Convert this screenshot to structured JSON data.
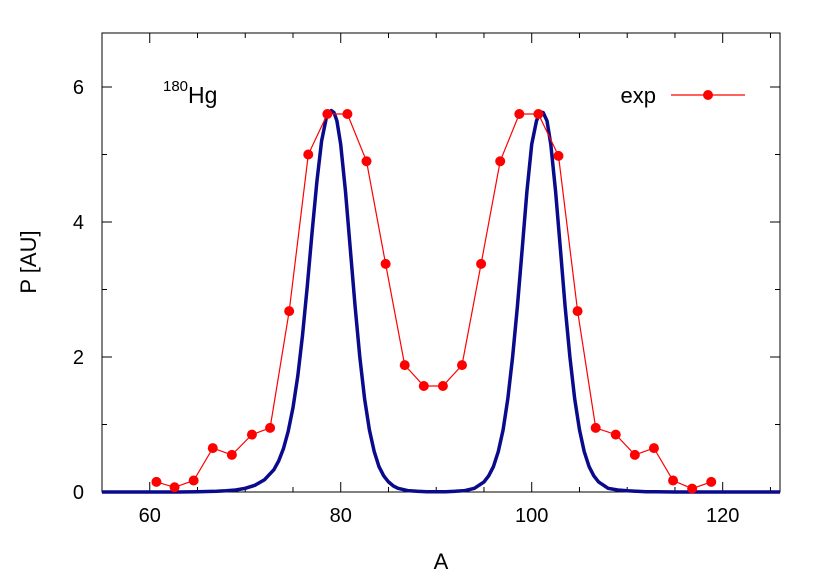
{
  "chart_data": {
    "type": "line",
    "title": "",
    "annotation": {
      "mass_number": "180",
      "element": "Hg"
    },
    "xlabel": "A",
    "ylabel": "P [AU]",
    "xlim": [
      55,
      126
    ],
    "ylim": [
      0,
      6.8
    ],
    "x_ticks": [
      60,
      80,
      100,
      120
    ],
    "y_ticks": [
      0,
      2,
      4,
      6
    ],
    "grid": false,
    "legend_position": "top-right",
    "colors": {
      "exp": "#ff0000",
      "theory": "#0a0a8c",
      "axis": "#000000"
    },
    "series": [
      {
        "name": "exp",
        "style": "line-markers",
        "x": [
          60.7,
          62.6,
          64.6,
          66.6,
          68.6,
          70.7,
          72.6,
          74.6,
          76.6,
          78.6,
          80.7,
          82.7,
          84.7,
          86.7,
          88.7,
          90.7,
          92.7,
          94.7,
          96.7,
          98.7,
          100.7,
          102.8,
          104.8,
          106.7,
          108.8,
          110.8,
          112.8,
          114.8,
          116.8,
          118.8
        ],
        "y": [
          0.15,
          0.07,
          0.17,
          0.65,
          0.55,
          0.85,
          0.95,
          2.68,
          5.0,
          5.6,
          5.6,
          4.9,
          3.38,
          1.88,
          1.57,
          1.57,
          1.88,
          3.38,
          4.9,
          5.6,
          5.6,
          4.98,
          2.68,
          0.95,
          0.85,
          0.55,
          0.65,
          0.17,
          0.05,
          0.15
        ]
      },
      {
        "style": "line",
        "x": [
          55,
          57,
          59,
          61,
          63,
          65,
          67,
          68,
          69,
          70,
          71,
          72,
          73,
          73.5,
          74,
          74.5,
          75,
          75.5,
          76,
          76.5,
          77,
          77.5,
          78,
          78.5,
          79,
          79.3,
          79.6,
          80,
          80.5,
          81,
          81.5,
          82,
          82.5,
          83,
          83.5,
          84,
          84.5,
          85,
          85.5,
          86,
          87,
          88,
          89,
          90,
          91,
          92,
          93,
          94,
          95,
          95.5,
          96,
          96.5,
          97,
          97.5,
          98,
          98.5,
          99,
          99.5,
          100,
          100.5,
          100.9,
          101.2,
          101.6,
          102,
          102.5,
          103,
          103.5,
          104,
          104.5,
          105,
          105.5,
          106,
          106.5,
          107,
          108,
          109,
          110,
          111,
          112,
          113,
          115,
          117,
          119,
          121,
          123,
          126
        ],
        "y": [
          0,
          0,
          0,
          0,
          0,
          0.003,
          0.01,
          0.018,
          0.03,
          0.055,
          0.1,
          0.18,
          0.33,
          0.46,
          0.64,
          0.9,
          1.25,
          1.72,
          2.32,
          3.05,
          3.85,
          4.6,
          5.2,
          5.55,
          5.65,
          5.62,
          5.5,
          5.15,
          4.45,
          3.6,
          2.75,
          2.0,
          1.38,
          0.92,
          0.6,
          0.38,
          0.24,
          0.15,
          0.09,
          0.055,
          0.02,
          0.01,
          0.005,
          0.003,
          0.005,
          0.01,
          0.02,
          0.055,
          0.15,
          0.24,
          0.38,
          0.6,
          0.92,
          1.38,
          2.0,
          2.75,
          3.6,
          4.45,
          5.15,
          5.5,
          5.63,
          5.62,
          5.5,
          5.15,
          4.45,
          3.6,
          2.75,
          2.0,
          1.38,
          0.92,
          0.6,
          0.38,
          0.24,
          0.15,
          0.055,
          0.03,
          0.018,
          0.01,
          0.005,
          0.003,
          0,
          0,
          0,
          0,
          0,
          0
        ]
      }
    ]
  }
}
